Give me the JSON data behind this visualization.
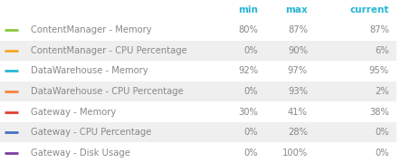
{
  "headers": [
    "min",
    "max",
    "current"
  ],
  "header_color": "#29b6d5",
  "rows": [
    {
      "label": "ContentManager - Memory",
      "color": "#8dc63f",
      "min": "80%",
      "max": "87%",
      "current": "87%"
    },
    {
      "label": "ContentManager - CPU Percentage",
      "color": "#f5a623",
      "min": "0%",
      "max": "90%",
      "current": "6%"
    },
    {
      "label": "DataWarehouse - Memory",
      "color": "#29b6d5",
      "min": "92%",
      "max": "97%",
      "current": "95%"
    },
    {
      "label": "DataWarehouse - CPU Percentage",
      "color": "#f5823c",
      "min": "0%",
      "max": "93%",
      "current": "2%"
    },
    {
      "label": "Gateway - Memory",
      "color": "#e03c31",
      "min": "30%",
      "max": "41%",
      "current": "38%"
    },
    {
      "label": "Gateway - CPU Percentage",
      "color": "#4472c4",
      "min": "0%",
      "max": "28%",
      "current": "0%"
    },
    {
      "label": "Gateway - Disk Usage",
      "color": "#7b3f9e",
      "min": "0%",
      "max": "100%",
      "current": "0%"
    }
  ],
  "bg_colors": [
    "#ffffff",
    "#efefef"
  ],
  "text_color": "#888888",
  "font_size": 7.2,
  "header_font_size": 7.5,
  "fig_width": 4.53,
  "fig_height": 1.8,
  "dpi": 100
}
